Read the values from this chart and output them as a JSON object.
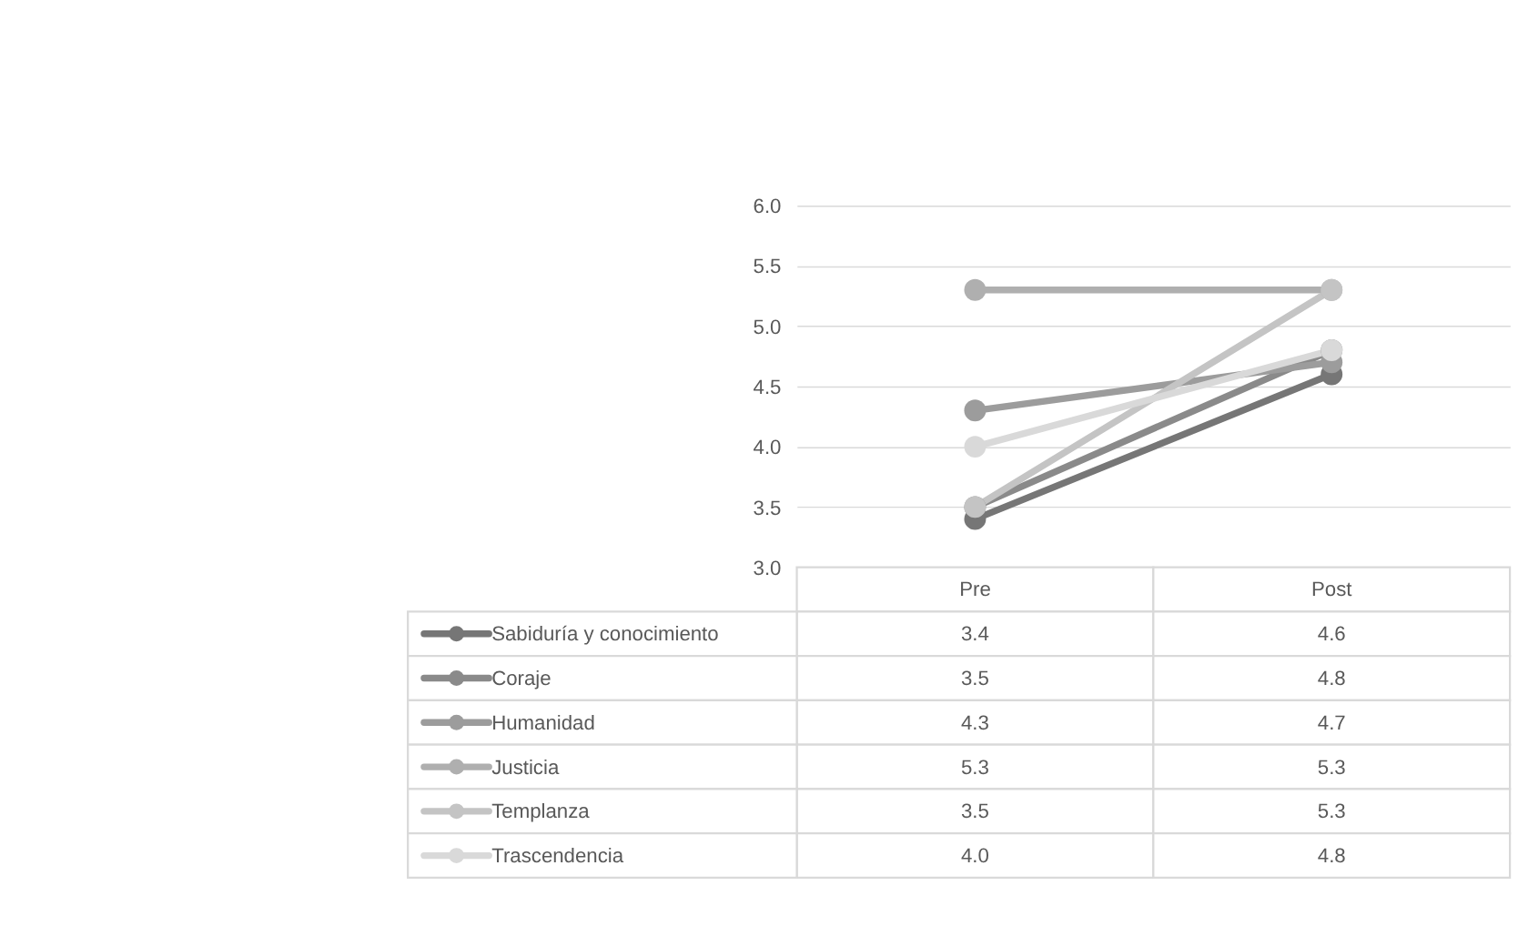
{
  "chart_data": {
    "type": "line",
    "categories": [
      "Pre",
      "Post"
    ],
    "series": [
      {
        "name": "Sabiduría y conocimiento",
        "color": "#767676",
        "values": [
          3.4,
          4.6
        ],
        "value_labels": [
          "3.4",
          "4.6"
        ]
      },
      {
        "name": "Coraje",
        "color": "#8a8a8a",
        "values": [
          3.5,
          4.8
        ],
        "value_labels": [
          "3.5",
          "4.8"
        ]
      },
      {
        "name": "Humanidad",
        "color": "#9c9c9c",
        "values": [
          4.3,
          4.7
        ],
        "value_labels": [
          "4.3",
          "4.7"
        ]
      },
      {
        "name": "Justicia",
        "color": "#afafaf",
        "values": [
          5.3,
          5.3
        ],
        "value_labels": [
          "5.3",
          "5.3"
        ]
      },
      {
        "name": "Templanza",
        "color": "#c4c4c4",
        "values": [
          3.5,
          5.3
        ],
        "value_labels": [
          "3.5",
          "5.3"
        ]
      },
      {
        "name": "Trascendencia",
        "color": "#d9d9d9",
        "values": [
          4.0,
          4.8
        ],
        "value_labels": [
          "4.0",
          "4.8"
        ]
      }
    ],
    "ylim": [
      3,
      6
    ],
    "yticks": [
      {
        "value": 3,
        "label": "3.0"
      },
      {
        "value": 3.5,
        "label": "3.5"
      },
      {
        "value": 4,
        "label": "4.0"
      },
      {
        "value": 4.5,
        "label": "4.5"
      },
      {
        "value": 5,
        "label": "5.0"
      },
      {
        "value": 5.5,
        "label": "5.5"
      },
      {
        "value": 6,
        "label": "6.0"
      }
    ],
    "grid": "y",
    "legend": "bottom left",
    "marker": "circle",
    "line_style": "solid"
  }
}
